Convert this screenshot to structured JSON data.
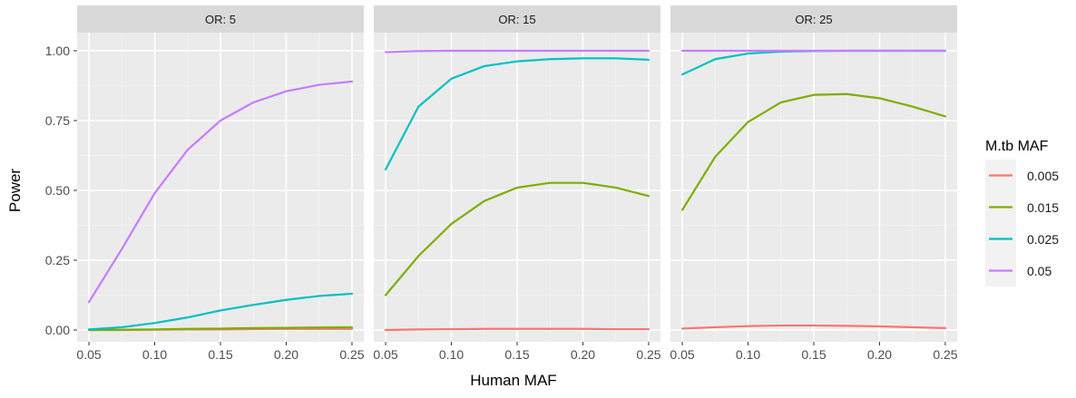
{
  "chart_data": {
    "type": "line",
    "ylabel": "Power",
    "xlabel": "Human MAF",
    "xlim": [
      0.05,
      0.25
    ],
    "ylim": [
      0,
      1
    ],
    "x_ticks": [
      "0.05",
      "0.10",
      "0.15",
      "0.20",
      "0.25"
    ],
    "y_ticks": [
      "0.00",
      "0.25",
      "0.50",
      "0.75",
      "1.00"
    ],
    "grid": true,
    "legend": {
      "title": "M.tb MAF",
      "position": "right",
      "entries": [
        {
          "label": "0.005",
          "color": "#F8766D"
        },
        {
          "label": "0.015",
          "color": "#7CAE00"
        },
        {
          "label": "0.025",
          "color": "#00BFC4"
        },
        {
          "label": "0.05",
          "color": "#C77CFF"
        }
      ]
    },
    "x": [
      0.05,
      0.075,
      0.1,
      0.125,
      0.15,
      0.175,
      0.2,
      0.225,
      0.25
    ],
    "panels": [
      {
        "title": "OR: 5",
        "series": [
          {
            "name": "0.005",
            "color": "#F8766D",
            "values": [
              0.0,
              0.0,
              0.001,
              0.002,
              0.002,
              0.003,
              0.004,
              0.004,
              0.004
            ]
          },
          {
            "name": "0.015",
            "color": "#7CAE00",
            "values": [
              0.0,
              0.001,
              0.002,
              0.004,
              0.005,
              0.007,
              0.008,
              0.009,
              0.01
            ]
          },
          {
            "name": "0.025",
            "color": "#00BFC4",
            "values": [
              0.002,
              0.01,
              0.025,
              0.045,
              0.07,
              0.09,
              0.108,
              0.122,
              0.13
            ]
          },
          {
            "name": "0.05",
            "color": "#C77CFF",
            "values": [
              0.1,
              0.29,
              0.49,
              0.645,
              0.75,
              0.815,
              0.855,
              0.878,
              0.89
            ]
          }
        ]
      },
      {
        "title": "OR: 15",
        "series": [
          {
            "name": "0.005",
            "color": "#F8766D",
            "values": [
              0.0,
              0.002,
              0.003,
              0.004,
              0.004,
              0.004,
              0.004,
              0.003,
              0.003
            ]
          },
          {
            "name": "0.015",
            "color": "#7CAE00",
            "values": [
              0.125,
              0.265,
              0.38,
              0.462,
              0.51,
              0.527,
              0.527,
              0.51,
              0.48
            ]
          },
          {
            "name": "0.025",
            "color": "#00BFC4",
            "values": [
              0.575,
              0.8,
              0.9,
              0.945,
              0.962,
              0.97,
              0.973,
              0.973,
              0.968
            ]
          },
          {
            "name": "0.05",
            "color": "#C77CFF",
            "values": [
              0.995,
              0.999,
              1.0,
              1.0,
              1.0,
              1.0,
              1.0,
              1.0,
              1.0
            ]
          }
        ]
      },
      {
        "title": "OR: 25",
        "series": [
          {
            "name": "0.005",
            "color": "#F8766D",
            "values": [
              0.005,
              0.01,
              0.014,
              0.016,
              0.016,
              0.015,
              0.013,
              0.01,
              0.007
            ]
          },
          {
            "name": "0.015",
            "color": "#7CAE00",
            "values": [
              0.43,
              0.62,
              0.745,
              0.815,
              0.842,
              0.845,
              0.83,
              0.8,
              0.765
            ]
          },
          {
            "name": "0.025",
            "color": "#00BFC4",
            "values": [
              0.915,
              0.97,
              0.99,
              0.997,
              0.999,
              1.0,
              1.0,
              1.0,
              1.0
            ]
          },
          {
            "name": "0.05",
            "color": "#C77CFF",
            "values": [
              1.0,
              1.0,
              1.0,
              1.0,
              1.0,
              1.0,
              1.0,
              1.0,
              1.0
            ]
          }
        ]
      }
    ]
  }
}
